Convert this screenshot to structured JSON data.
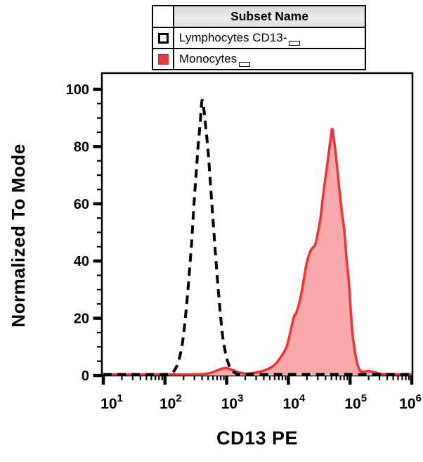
{
  "legend": {
    "header": "Subset Name",
    "rows": [
      {
        "label": "Lymphocytes CD13-",
        "swatch": "open-black-dashed"
      },
      {
        "label": "Monocytes",
        "swatch": "red-filled"
      }
    ]
  },
  "axes": {
    "x": {
      "title": "CD13 PE",
      "scale": "log10",
      "base_label": "10",
      "decades": [
        1,
        2,
        3,
        4,
        5,
        6
      ]
    },
    "y": {
      "title": "Normalized To Mode",
      "ticks": [
        0,
        20,
        40,
        60,
        80,
        100
      ],
      "minor_step": 5,
      "range": [
        0,
        100
      ]
    }
  },
  "colors": {
    "curve_red": "#ee3237",
    "fill_pink": "#fca9ac",
    "legend_red_swatch": "#f2373d",
    "dashed_black": "#000000",
    "axis_black": "#000000",
    "legend_header_bg": "#e4e4e4"
  },
  "chart_data": {
    "type": "area",
    "subtype": "flow-cytometry-overlay-histogram",
    "title": "",
    "xlabel": "CD13 PE",
    "ylabel": "Normalized To Mode",
    "x_scale": "log10",
    "xlim_log10": [
      1,
      6
    ],
    "ylim": [
      0,
      100
    ],
    "grid": false,
    "legend_position": "top",
    "series": [
      {
        "name": "Lymphocytes CD13-",
        "style": "dashed",
        "color": "#000000",
        "fill": "none",
        "peak": {
          "x_log10": 2.6,
          "y": 96
        },
        "points_log10x_y": [
          [
            1.0,
            0.4
          ],
          [
            1.5,
            0.4
          ],
          [
            2.0,
            0.4
          ],
          [
            2.1,
            0.8
          ],
          [
            2.16,
            2
          ],
          [
            2.22,
            5
          ],
          [
            2.28,
            11
          ],
          [
            2.33,
            20
          ],
          [
            2.38,
            32
          ],
          [
            2.43,
            46
          ],
          [
            2.47,
            60
          ],
          [
            2.51,
            72
          ],
          [
            2.54,
            81
          ],
          [
            2.57,
            88
          ],
          [
            2.6,
            96
          ],
          [
            2.63,
            93
          ],
          [
            2.66,
            87
          ],
          [
            2.7,
            78
          ],
          [
            2.74,
            66
          ],
          [
            2.78,
            54
          ],
          [
            2.82,
            42
          ],
          [
            2.86,
            31
          ],
          [
            2.9,
            21
          ],
          [
            2.94,
            13
          ],
          [
            2.99,
            7
          ],
          [
            3.04,
            3.5
          ],
          [
            3.09,
            1.7
          ],
          [
            3.15,
            0.8
          ],
          [
            3.25,
            0.4
          ],
          [
            4.0,
            0.4
          ],
          [
            5.0,
            0.4
          ],
          [
            6.0,
            0.4
          ]
        ]
      },
      {
        "name": "Monocytes",
        "style": "solid",
        "color": "#ee3237",
        "fill": "#fca9ac",
        "peak": {
          "x_log10": 4.71,
          "y": 86
        },
        "points_log10x_y": [
          [
            1.0,
            0.4
          ],
          [
            1.8,
            0.4
          ],
          [
            2.4,
            0.4
          ],
          [
            2.6,
            0.5
          ],
          [
            2.74,
            0.9
          ],
          [
            2.86,
            1.9
          ],
          [
            2.97,
            2.6
          ],
          [
            3.06,
            2.2
          ],
          [
            3.18,
            1.2
          ],
          [
            3.29,
            0.7
          ],
          [
            3.4,
            0.8
          ],
          [
            3.5,
            1.1
          ],
          [
            3.65,
            2.1
          ],
          [
            3.77,
            3.6
          ],
          [
            3.88,
            6.5
          ],
          [
            3.97,
            10
          ],
          [
            4.03,
            15
          ],
          [
            4.09,
            20.5
          ],
          [
            4.13,
            22
          ],
          [
            4.18,
            25.5
          ],
          [
            4.23,
            31
          ],
          [
            4.3,
            39.5
          ],
          [
            4.37,
            44
          ],
          [
            4.43,
            45.5
          ],
          [
            4.47,
            49
          ],
          [
            4.52,
            55
          ],
          [
            4.56,
            62.5
          ],
          [
            4.61,
            70.5
          ],
          [
            4.65,
            77
          ],
          [
            4.68,
            82
          ],
          [
            4.71,
            86.2
          ],
          [
            4.74,
            82
          ],
          [
            4.77,
            77
          ],
          [
            4.81,
            68.5
          ],
          [
            4.86,
            58.5
          ],
          [
            4.91,
            50
          ],
          [
            4.94,
            41.5
          ],
          [
            4.98,
            33
          ],
          [
            5.01,
            23
          ],
          [
            5.04,
            14.5
          ],
          [
            5.08,
            8.4
          ],
          [
            5.11,
            4.7
          ],
          [
            5.16,
            1.8
          ],
          [
            5.22,
            1.3
          ],
          [
            5.3,
            1.6
          ],
          [
            5.42,
            1.0
          ],
          [
            5.55,
            0.5
          ],
          [
            6.0,
            0.4
          ]
        ]
      }
    ]
  }
}
